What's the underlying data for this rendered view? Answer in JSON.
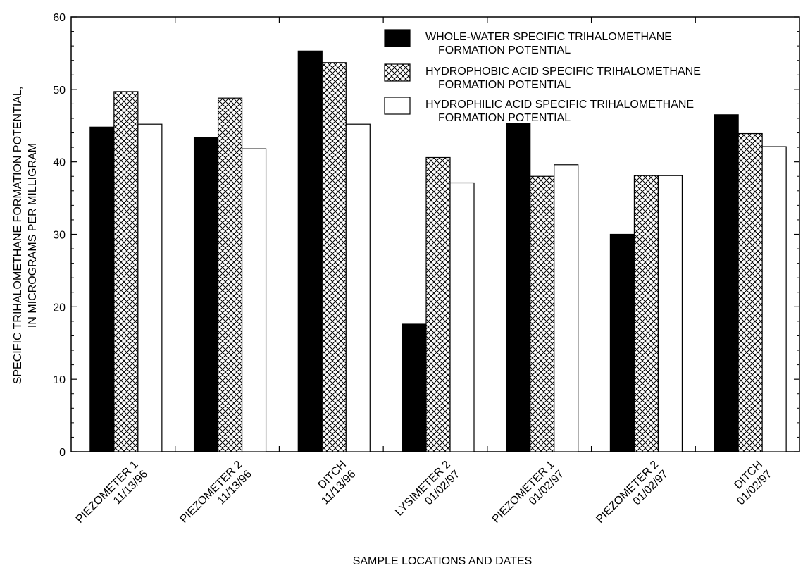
{
  "chart_data": {
    "type": "bar",
    "xlabel": "SAMPLE LOCATIONS AND DATES",
    "ylabel": [
      "SPECIFIC TRIHALOMETHANE FORMATION POTENTIAL,",
      "IN MICROGRAMS PER MILLIGRAM"
    ],
    "ylim": [
      0,
      60
    ],
    "yticks": [
      0,
      10,
      20,
      30,
      40,
      50,
      60
    ],
    "categories": [
      [
        "PIEZOMETER 1",
        "11/13/96"
      ],
      [
        "PIEZOMETER 2",
        "11/13/96"
      ],
      [
        "DITCH",
        "11/13/96"
      ],
      [
        "LYSIMETER 2",
        "01/02/97"
      ],
      [
        "PIEZOMETER 1",
        "01/02/97"
      ],
      [
        "PIEZOMETER 2",
        "01/02/97"
      ],
      [
        "DITCH",
        "01/02/97"
      ]
    ],
    "series": [
      {
        "name": [
          "WHOLE-WATER SPECIFIC TRIHALOMETHANE",
          "FORMATION POTENTIAL"
        ],
        "style": "solid",
        "values": [
          44.8,
          43.4,
          55.3,
          17.6,
          45.3,
          30.0,
          46.5
        ]
      },
      {
        "name": [
          "HYDROPHOBIC ACID SPECIFIC TRIHALOMETHANE",
          "FORMATION POTENTIAL"
        ],
        "style": "crosshatch",
        "values": [
          49.7,
          48.8,
          53.7,
          40.6,
          38.0,
          38.1,
          43.9
        ]
      },
      {
        "name": [
          "HYDROPHILIC ACID SPECIFIC TRIHALOMETHANE",
          "FORMATION POTENTIAL"
        ],
        "style": "open",
        "values": [
          45.2,
          41.8,
          45.2,
          37.1,
          39.6,
          38.1,
          42.1
        ]
      }
    ],
    "legend": "top-right",
    "grid": false,
    "colors": {
      "solid": "#000000",
      "open": "#ffffff",
      "outline": "#000000"
    }
  }
}
